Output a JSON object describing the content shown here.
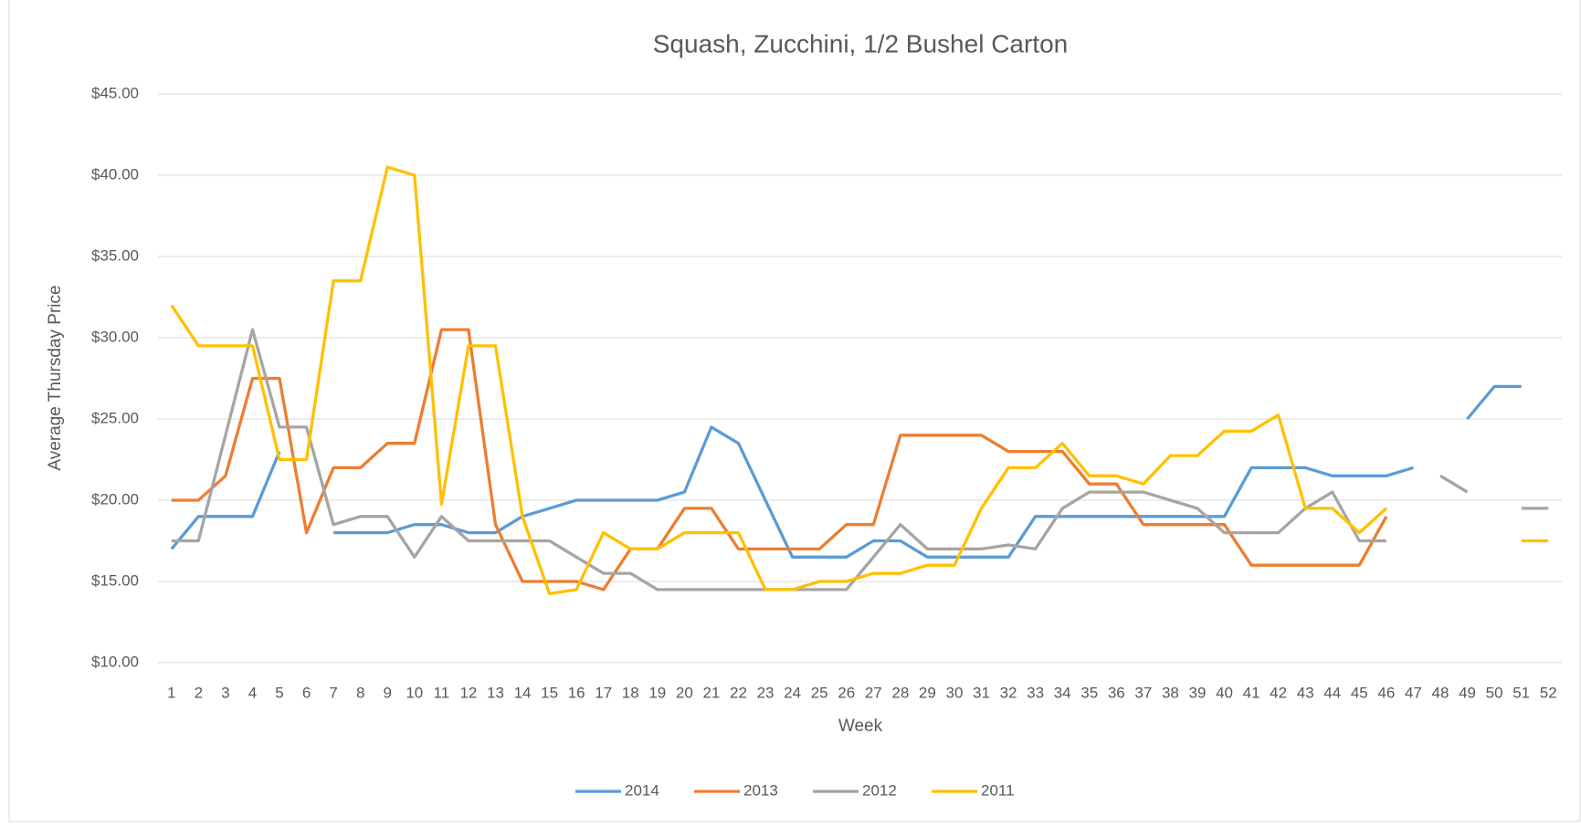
{
  "chart_data": {
    "type": "line",
    "title": "Squash, Zucchini, 1/2 Bushel Carton",
    "x_label": "Week",
    "y_label": "Average Thursday Price",
    "categories": [
      "1",
      "2",
      "3",
      "4",
      "5",
      "6",
      "7",
      "8",
      "9",
      "10",
      "11",
      "12",
      "13",
      "14",
      "15",
      "16",
      "17",
      "18",
      "19",
      "20",
      "21",
      "22",
      "23",
      "24",
      "25",
      "26",
      "27",
      "28",
      "29",
      "30",
      "31",
      "32",
      "33",
      "34",
      "35",
      "36",
      "37",
      "38",
      "39",
      "40",
      "41",
      "42",
      "43",
      "44",
      "45",
      "46",
      "47",
      "48",
      "49",
      "50",
      "51",
      "52"
    ],
    "ylim": [
      10,
      45
    ],
    "yticks": [
      {
        "value": 10,
        "label": "$10.00"
      },
      {
        "value": 15,
        "label": "$15.00"
      },
      {
        "value": 20,
        "label": "$20.00"
      },
      {
        "value": 25,
        "label": "$25.00"
      },
      {
        "value": 30,
        "label": "$30.00"
      },
      {
        "value": 35,
        "label": "$35.00"
      },
      {
        "value": 40,
        "label": "$40.00"
      },
      {
        "value": 45,
        "label": "$45.00"
      }
    ],
    "grid": true,
    "legend": "bottom",
    "series": [
      {
        "name": "2014",
        "color": "#5b9bd5",
        "values": [
          17,
          19,
          19,
          19,
          23,
          null,
          18,
          18,
          18,
          18.5,
          18.5,
          18,
          18,
          19,
          19.5,
          20,
          20,
          20,
          20,
          20.5,
          24.5,
          23.5,
          20,
          16.5,
          16.5,
          16.5,
          17.5,
          17.5,
          16.5,
          16.5,
          16.5,
          16.5,
          19,
          19,
          19,
          19,
          19,
          19,
          19,
          19,
          22,
          22,
          22,
          21.5,
          21.5,
          21.5,
          22,
          null,
          25,
          27,
          27,
          null
        ]
      },
      {
        "name": "2013",
        "color": "#ed7d31",
        "values": [
          20,
          20,
          21.5,
          27.5,
          27.5,
          18,
          22,
          22,
          23.5,
          23.5,
          30.5,
          30.5,
          18.5,
          15,
          15,
          15,
          14.5,
          17,
          17,
          19.5,
          19.5,
          17,
          17,
          17,
          17,
          18.5,
          18.5,
          24,
          24,
          24,
          24,
          23,
          23,
          23,
          21,
          21,
          18.5,
          18.5,
          18.5,
          18.5,
          16,
          16,
          16,
          16,
          16,
          19,
          null,
          null,
          null,
          null,
          null,
          null
        ]
      },
      {
        "name": "2012",
        "color": "#a5a5a5",
        "values": [
          17.5,
          17.5,
          24,
          30.5,
          24.5,
          24.5,
          18.5,
          19,
          19,
          16.5,
          19,
          17.5,
          17.5,
          17.5,
          17.5,
          16.5,
          15.5,
          15.5,
          14.5,
          14.5,
          14.5,
          14.5,
          14.5,
          14.5,
          14.5,
          14.5,
          16.5,
          18.5,
          17,
          17,
          17,
          17.25,
          17,
          19.5,
          20.5,
          20.5,
          20.5,
          20,
          19.5,
          18,
          18,
          18,
          19.5,
          20.5,
          17.5,
          17.5,
          null,
          21.5,
          20.5,
          null,
          19.5,
          19.5
        ]
      },
      {
        "name": "2011",
        "color": "#ffc000",
        "values": [
          32,
          29.5,
          29.5,
          29.5,
          22.5,
          22.5,
          33.5,
          33.5,
          40.5,
          40,
          19.75,
          29.5,
          29.5,
          19,
          14.25,
          14.5,
          18,
          17,
          17,
          18,
          18,
          18,
          14.5,
          14.5,
          15,
          15,
          15.5,
          15.5,
          16,
          16,
          19.5,
          22,
          22,
          23.5,
          21.5,
          21.5,
          21,
          22.75,
          22.75,
          24.25,
          24.25,
          25.25,
          19.5,
          19.5,
          18,
          19.5,
          null,
          null,
          null,
          null,
          17.5,
          17.5
        ]
      }
    ]
  }
}
